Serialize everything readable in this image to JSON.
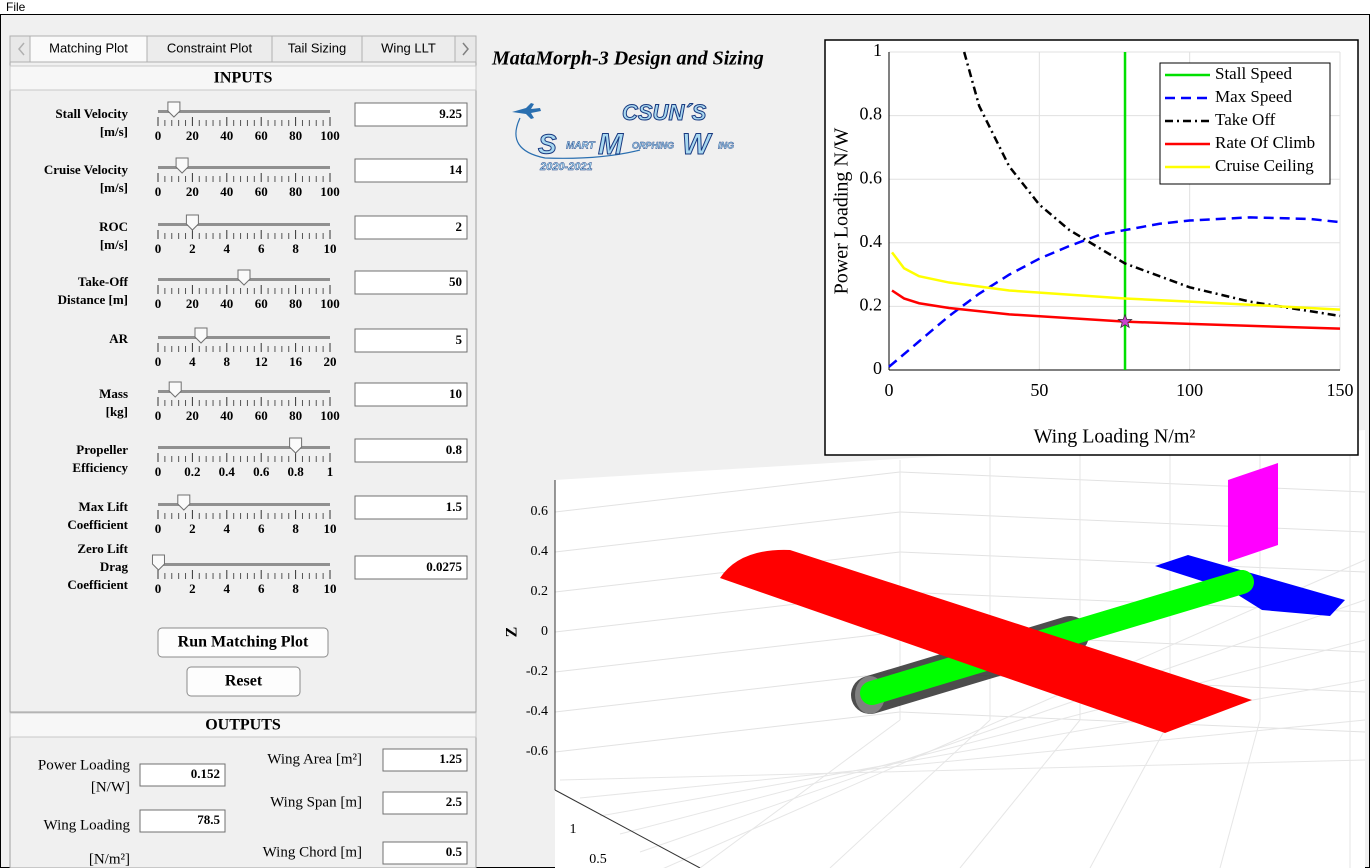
{
  "menu": [
    "File"
  ],
  "tabs": [
    "Matching Plot",
    "Constraint Plot",
    "Tail Sizing",
    "Wing LLT"
  ],
  "inputs": {
    "title": "INPUTS",
    "rows": [
      {
        "label": [
          "Stall Velocity",
          "[m/s]"
        ],
        "value": 9.25,
        "ticks": [
          0,
          20,
          40,
          60,
          80,
          100
        ]
      },
      {
        "label": [
          "Cruise Velocity",
          "[m/s]"
        ],
        "value": 14,
        "ticks": [
          0,
          20,
          40,
          60,
          80,
          100
        ]
      },
      {
        "label": [
          "ROC",
          "[m/s]"
        ],
        "value": 2,
        "ticks": [
          0,
          2,
          4,
          6,
          8,
          10
        ]
      },
      {
        "label": [
          "Take-Off",
          "Distance [m]"
        ],
        "value": 50,
        "ticks": [
          0,
          20,
          40,
          60,
          80,
          100
        ]
      },
      {
        "label": [
          "AR"
        ],
        "value": 5,
        "ticks": [
          0,
          4,
          8,
          12,
          16,
          20
        ]
      },
      {
        "label": [
          "Mass",
          "[kg]"
        ],
        "value": 10,
        "ticks": [
          0,
          20,
          40,
          60,
          80,
          100
        ]
      },
      {
        "label": [
          "Propeller",
          "Efficiency"
        ],
        "value": 0.8,
        "ticks": [
          0,
          0.2,
          0.4,
          0.6,
          0.8,
          1
        ]
      },
      {
        "label": [
          "Max Lift",
          "Coefficient"
        ],
        "value": 1.5,
        "ticks": [
          0,
          2,
          4,
          6,
          8,
          10
        ]
      },
      {
        "label": [
          "Zero Lift",
          "Drag",
          "Coefficient"
        ],
        "value": 0.0275,
        "ticks": [
          0,
          2,
          4,
          6,
          8,
          10
        ]
      }
    ]
  },
  "buttons": [
    "Run Matching Plot",
    "Reset"
  ],
  "outputs": {
    "title": "OUTPUTS",
    "fields": [
      {
        "label": [
          "Power Loading",
          "[N/W]"
        ],
        "value": 0.152
      },
      {
        "label": [
          "Wing Loading",
          "[N/m²]"
        ],
        "value": 78.5
      },
      {
        "label": [
          "Wing Area [m²]"
        ],
        "value": 1.25
      },
      {
        "label": [
          "Wing Span [m]"
        ],
        "value": 2.5
      },
      {
        "label": [
          "Wing Chord [m]"
        ],
        "value": 0.5
      }
    ]
  },
  "app_title": "MataMorph-3 Design and Sizing",
  "logo": {
    "top": "CSUN´S",
    "words": [
      "S",
      "MART",
      "M",
      "ORPHING",
      "W",
      "ING"
    ],
    "years": "2020-2021"
  },
  "chart_data": {
    "type": "line",
    "xlabel": "Wing Loading  N/m²",
    "ylabel": "Power Loading  N/W",
    "xlim": [
      0,
      150
    ],
    "ylim": [
      0,
      1
    ],
    "xticks": [
      0,
      50,
      100,
      150
    ],
    "yticks": [
      0,
      0.2,
      0.4,
      0.6,
      0.8,
      1
    ],
    "grid": true,
    "legend": "top-right",
    "series": [
      {
        "name": "Stall Speed",
        "color": "#00e000",
        "dash": "solid",
        "x": [
          78.5,
          78.5
        ],
        "values": [
          0,
          1
        ]
      },
      {
        "name": "Max Speed",
        "color": "#0000ff",
        "dash": "dashed",
        "x": [
          0,
          10,
          20,
          30,
          40,
          50,
          60,
          70,
          78.5,
          90,
          100,
          120,
          140,
          150
        ],
        "values": [
          0.01,
          0.09,
          0.17,
          0.24,
          0.3,
          0.35,
          0.39,
          0.425,
          0.44,
          0.46,
          0.47,
          0.48,
          0.475,
          0.465
        ]
      },
      {
        "name": "Take Off",
        "color": "#000000",
        "dash": "dashdot",
        "x": [
          25,
          30,
          40,
          50,
          60,
          78.5,
          100,
          120,
          150
        ],
        "values": [
          1,
          0.83,
          0.64,
          0.52,
          0.44,
          0.335,
          0.26,
          0.215,
          0.17
        ]
      },
      {
        "name": "Rate Of Climb",
        "color": "#ff0000",
        "dash": "solid",
        "x": [
          1,
          5,
          10,
          20,
          40,
          78.5,
          100,
          150
        ],
        "values": [
          0.25,
          0.225,
          0.21,
          0.195,
          0.175,
          0.152,
          0.145,
          0.13
        ]
      },
      {
        "name": "Cruise Ceiling",
        "color": "#ffff00",
        "dash": "solid",
        "x": [
          1,
          5,
          10,
          20,
          40,
          78.5,
          100,
          150
        ],
        "values": [
          0.37,
          0.32,
          0.295,
          0.275,
          0.25,
          0.225,
          0.215,
          0.19
        ]
      }
    ],
    "design_point": {
      "x": 78.5,
      "y": 0.152,
      "color": "#cc44cc"
    }
  },
  "model_view": {
    "z_label": "Z",
    "z_ticks": [
      0.6,
      0.4,
      0.2,
      0,
      -0.2,
      -0.4,
      -0.6
    ],
    "y_ticks": [
      1,
      0.5
    ]
  }
}
